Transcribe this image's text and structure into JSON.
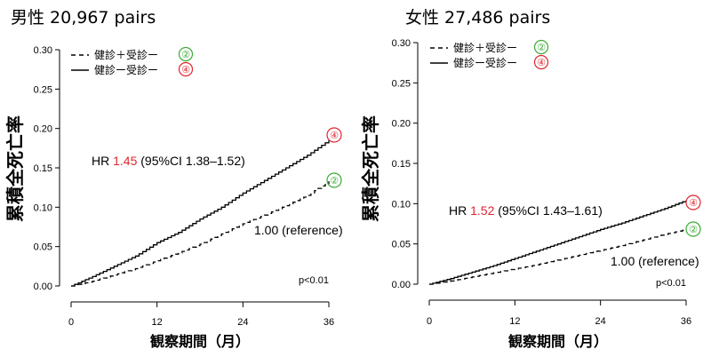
{
  "chart_data": [
    {
      "type": "line",
      "title": "男性 20,967 pairs",
      "xlabel": "観察期間（月）",
      "ylabel": "累積全死亡率",
      "xlim": [
        0,
        36
      ],
      "ylim": [
        0,
        0.3
      ],
      "xticks": [
        0,
        12,
        24,
        36
      ],
      "yticks": [
        "0.00",
        "0.05",
        "0.10",
        "0.15",
        "0.20",
        "0.25",
        "0.30"
      ],
      "legend": [
        {
          "style": "dashed",
          "label": "健診＋受診ー",
          "marker": "②"
        },
        {
          "style": "solid",
          "label": "健診ー受診ー",
          "marker": "④"
        }
      ],
      "hr_text": {
        "prefix": "HR ",
        "value": "1.45",
        "suffix": " (95%CI 1.38–1.52)"
      },
      "reference_text": "1.00 (reference)",
      "p_text": "p<0.01",
      "series": [
        {
          "marker": "④",
          "style": "solid",
          "x": [
            0,
            3,
            6,
            9,
            12,
            15,
            18,
            21,
            24,
            27,
            30,
            33,
            36
          ],
          "y": [
            0,
            0.012,
            0.025,
            0.038,
            0.055,
            0.068,
            0.085,
            0.1,
            0.118,
            0.134,
            0.15,
            0.166,
            0.185
          ]
        },
        {
          "marker": "②",
          "style": "dashed",
          "x": [
            0,
            3,
            6,
            9,
            12,
            15,
            18,
            21,
            24,
            27,
            30,
            33,
            36
          ],
          "y": [
            0,
            0.006,
            0.014,
            0.022,
            0.032,
            0.042,
            0.053,
            0.066,
            0.079,
            0.09,
            0.102,
            0.115,
            0.133
          ]
        }
      ]
    },
    {
      "type": "line",
      "title": "女性 27,486 pairs",
      "xlabel": "観察期間（月）",
      "ylabel": "累積全死亡率",
      "xlim": [
        0,
        36
      ],
      "ylim": [
        0,
        0.3
      ],
      "xticks": [
        0,
        12,
        24,
        36
      ],
      "yticks": [
        "0.00",
        "0.05",
        "0.10",
        "0.15",
        "0.20",
        "0.25",
        "0.30"
      ],
      "legend": [
        {
          "style": "dashed",
          "label": "健診＋受診ー",
          "marker": "②"
        },
        {
          "style": "solid",
          "label": "健診ー受診ー",
          "marker": "④"
        }
      ],
      "hr_text": {
        "prefix": "HR ",
        "value": "1.52",
        "suffix": " (95%CI 1.43–1.61)"
      },
      "reference_text": "1.00 (reference)",
      "p_text": "p<0.01",
      "series": [
        {
          "marker": "④",
          "style": "solid",
          "x": [
            0,
            3,
            6,
            9,
            12,
            15,
            18,
            21,
            24,
            27,
            30,
            33,
            36
          ],
          "y": [
            0,
            0.007,
            0.015,
            0.023,
            0.032,
            0.041,
            0.05,
            0.059,
            0.068,
            0.076,
            0.085,
            0.094,
            0.104
          ]
        },
        {
          "marker": "②",
          "style": "dashed",
          "x": [
            0,
            3,
            6,
            9,
            12,
            15,
            18,
            21,
            24,
            27,
            30,
            33,
            36
          ],
          "y": [
            0,
            0.004,
            0.009,
            0.014,
            0.019,
            0.024,
            0.03,
            0.036,
            0.042,
            0.048,
            0.055,
            0.062,
            0.068
          ]
        }
      ]
    }
  ],
  "colors": {
    "hr_value": "#e0252f",
    "marker_red": "#e0252f",
    "marker_green": "#3aaa35",
    "line": "#000000"
  }
}
